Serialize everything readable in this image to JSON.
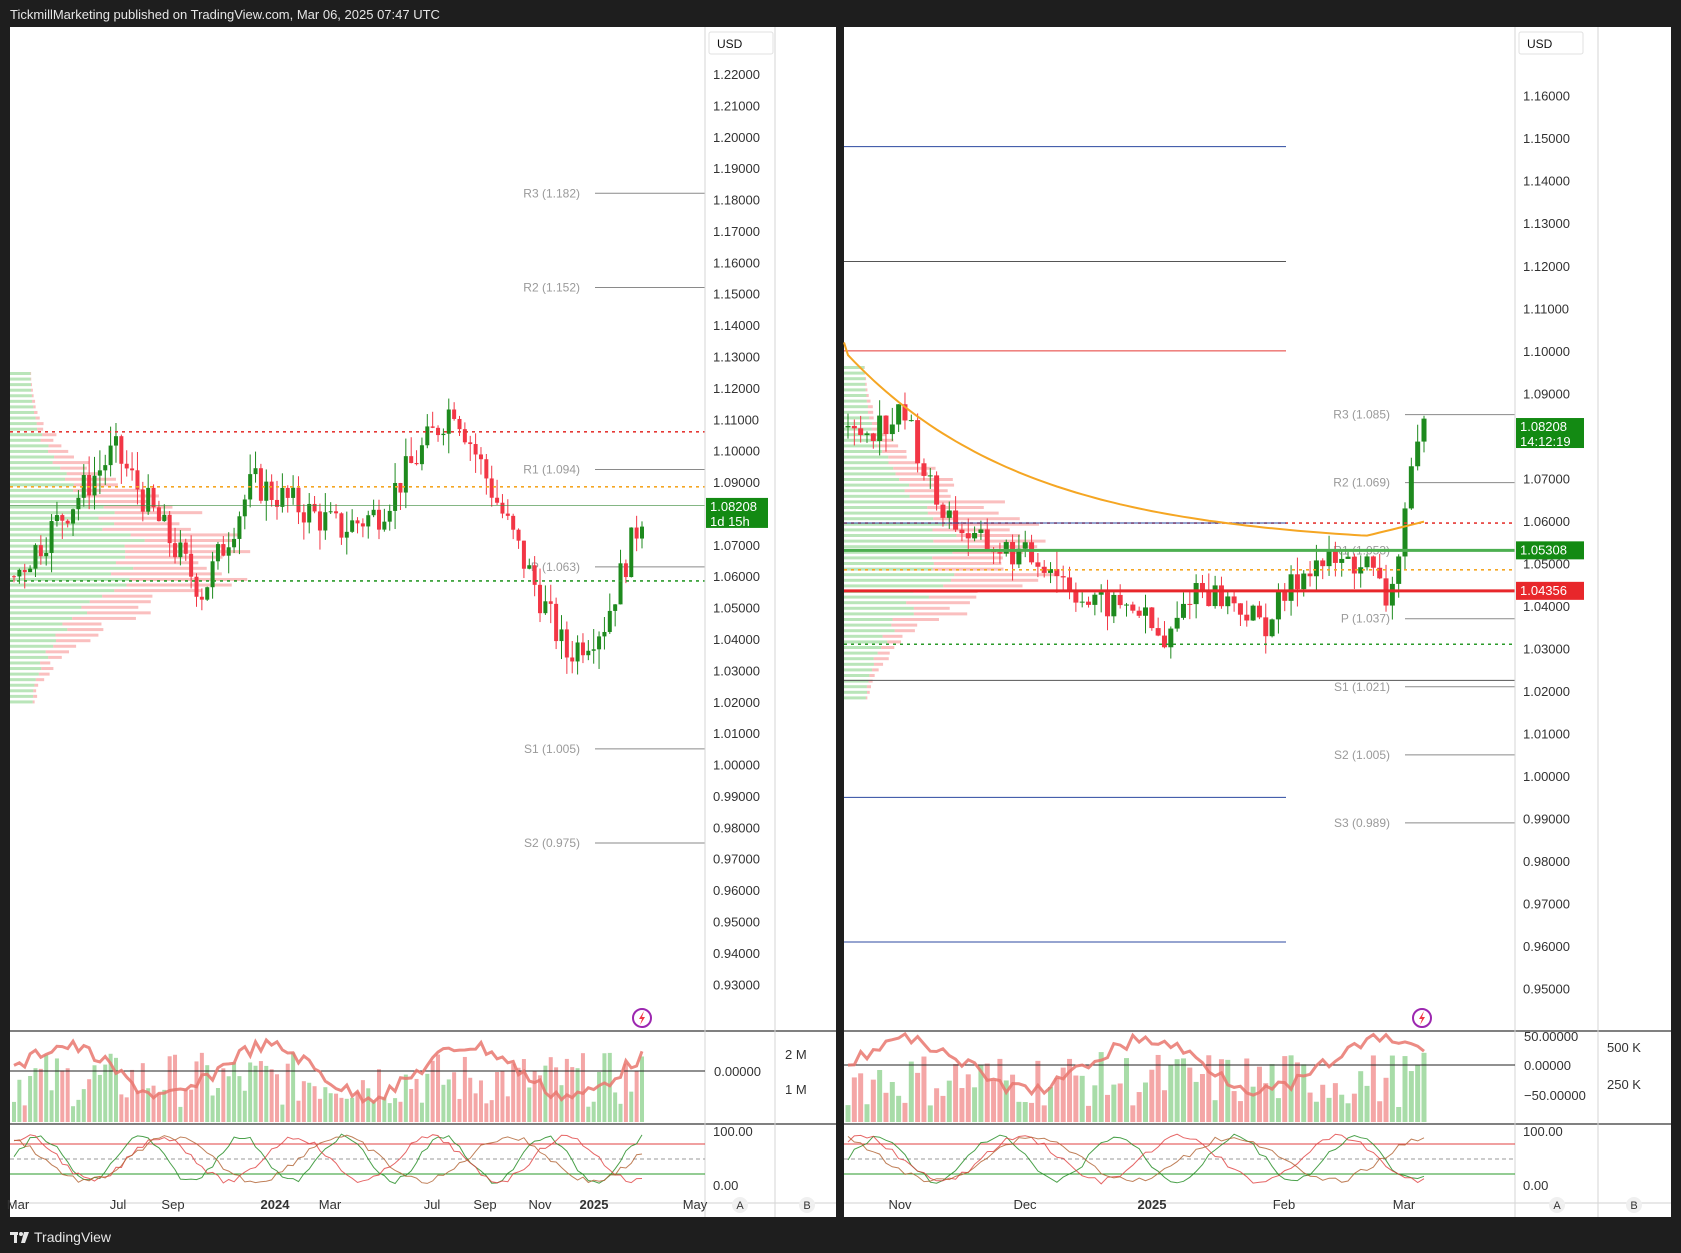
{
  "header": {
    "published": "TickmillMarketing published on TradingView.com, Mar 06, 2025 07:47 UTC"
  },
  "footer": {
    "brand": "TradingView"
  },
  "colors": {
    "up": "#1e8a1e",
    "down": "#f23645",
    "vwap": "#f5a623",
    "label_green": "#138a13",
    "label_red": "#e8272b",
    "pivot_line": "#bdbdbd",
    "blue_line": "#2c4aa0"
  },
  "chart_data": [
    {
      "type": "candlestick",
      "panel": "left",
      "currency": "USD",
      "x_ticks": [
        "Mar",
        "Jul",
        "Sep",
        "2024",
        "Mar",
        "Jul",
        "Sep",
        "Nov",
        "2025",
        "May"
      ],
      "y_ticks": [
        "1.22000",
        "1.21000",
        "1.20000",
        "1.19000",
        "1.18000",
        "1.17000",
        "1.16000",
        "1.15000",
        "1.14000",
        "1.13000",
        "1.12000",
        "1.11000",
        "1.10000",
        "1.09000",
        "1.08000",
        "1.07000",
        "1.06000",
        "1.05000",
        "1.04000",
        "1.03000",
        "1.02000",
        "1.01000",
        "1.00000",
        "0.99000",
        "0.98000",
        "0.97000",
        "0.96000",
        "0.95000",
        "0.94000",
        "0.93000"
      ],
      "ylim": [
        0.925,
        1.2235
      ],
      "last_price": "1.08208",
      "countdown": "1d 15h",
      "pivots": [
        {
          "label": "R3 (1.182)",
          "value": 1.182
        },
        {
          "label": "R2 (1.152)",
          "value": 1.152
        },
        {
          "label": "R1 (1.094)",
          "value": 1.094
        },
        {
          "label": "P (1.063)",
          "value": 1.063
        },
        {
          "label": "S1 (1.005)",
          "value": 1.005
        },
        {
          "label": "S2 (0.975)",
          "value": 0.975
        }
      ],
      "volume_axis": [
        "2 M",
        "1 M"
      ],
      "osc_axis": [
        "0.00000"
      ],
      "stoch_axis": [
        "100.00",
        "0.00"
      ],
      "scale_buttons": [
        "A",
        "B"
      ]
    },
    {
      "type": "candlestick",
      "panel": "right",
      "currency": "USD",
      "x_ticks": [
        "Nov",
        "Dec",
        "2025",
        "Feb",
        "Mar"
      ],
      "y_ticks": [
        "1.16000",
        "1.15000",
        "1.14000",
        "1.13000",
        "1.12000",
        "1.11000",
        "1.10000",
        "1.09000",
        "1.08000",
        "1.07000",
        "1.06000",
        "1.05000",
        "1.04000",
        "1.03000",
        "1.02000",
        "1.01000",
        "1.00000",
        "0.99000",
        "0.98000",
        "0.97000",
        "0.96000",
        "0.95000"
      ],
      "ylim": [
        0.945,
        1.1665
      ],
      "last_price": "1.08208",
      "countdown": "14:12:19",
      "level_high": "1.05308",
      "level_low": "1.04356",
      "pivots": [
        {
          "label": "R3 (1.085)",
          "value": 1.085
        },
        {
          "label": "R2 (1.069)",
          "value": 1.069
        },
        {
          "label": "R1 (1.053)",
          "value": 1.053
        },
        {
          "label": "P (1.037)",
          "value": 1.037
        },
        {
          "label": "S1 (1.021)",
          "value": 1.021
        },
        {
          "label": "S2 (1.005)",
          "value": 1.005
        },
        {
          "label": "S3 (0.989)",
          "value": 0.989
        }
      ],
      "osc_axis": [
        "50.00000",
        "0.00000",
        "−50.00000"
      ],
      "volume_axis": [
        "500 K",
        "250 K"
      ],
      "stoch_axis": [
        "100.00",
        "0.00"
      ],
      "scale_buttons": [
        "A",
        "B"
      ]
    }
  ]
}
